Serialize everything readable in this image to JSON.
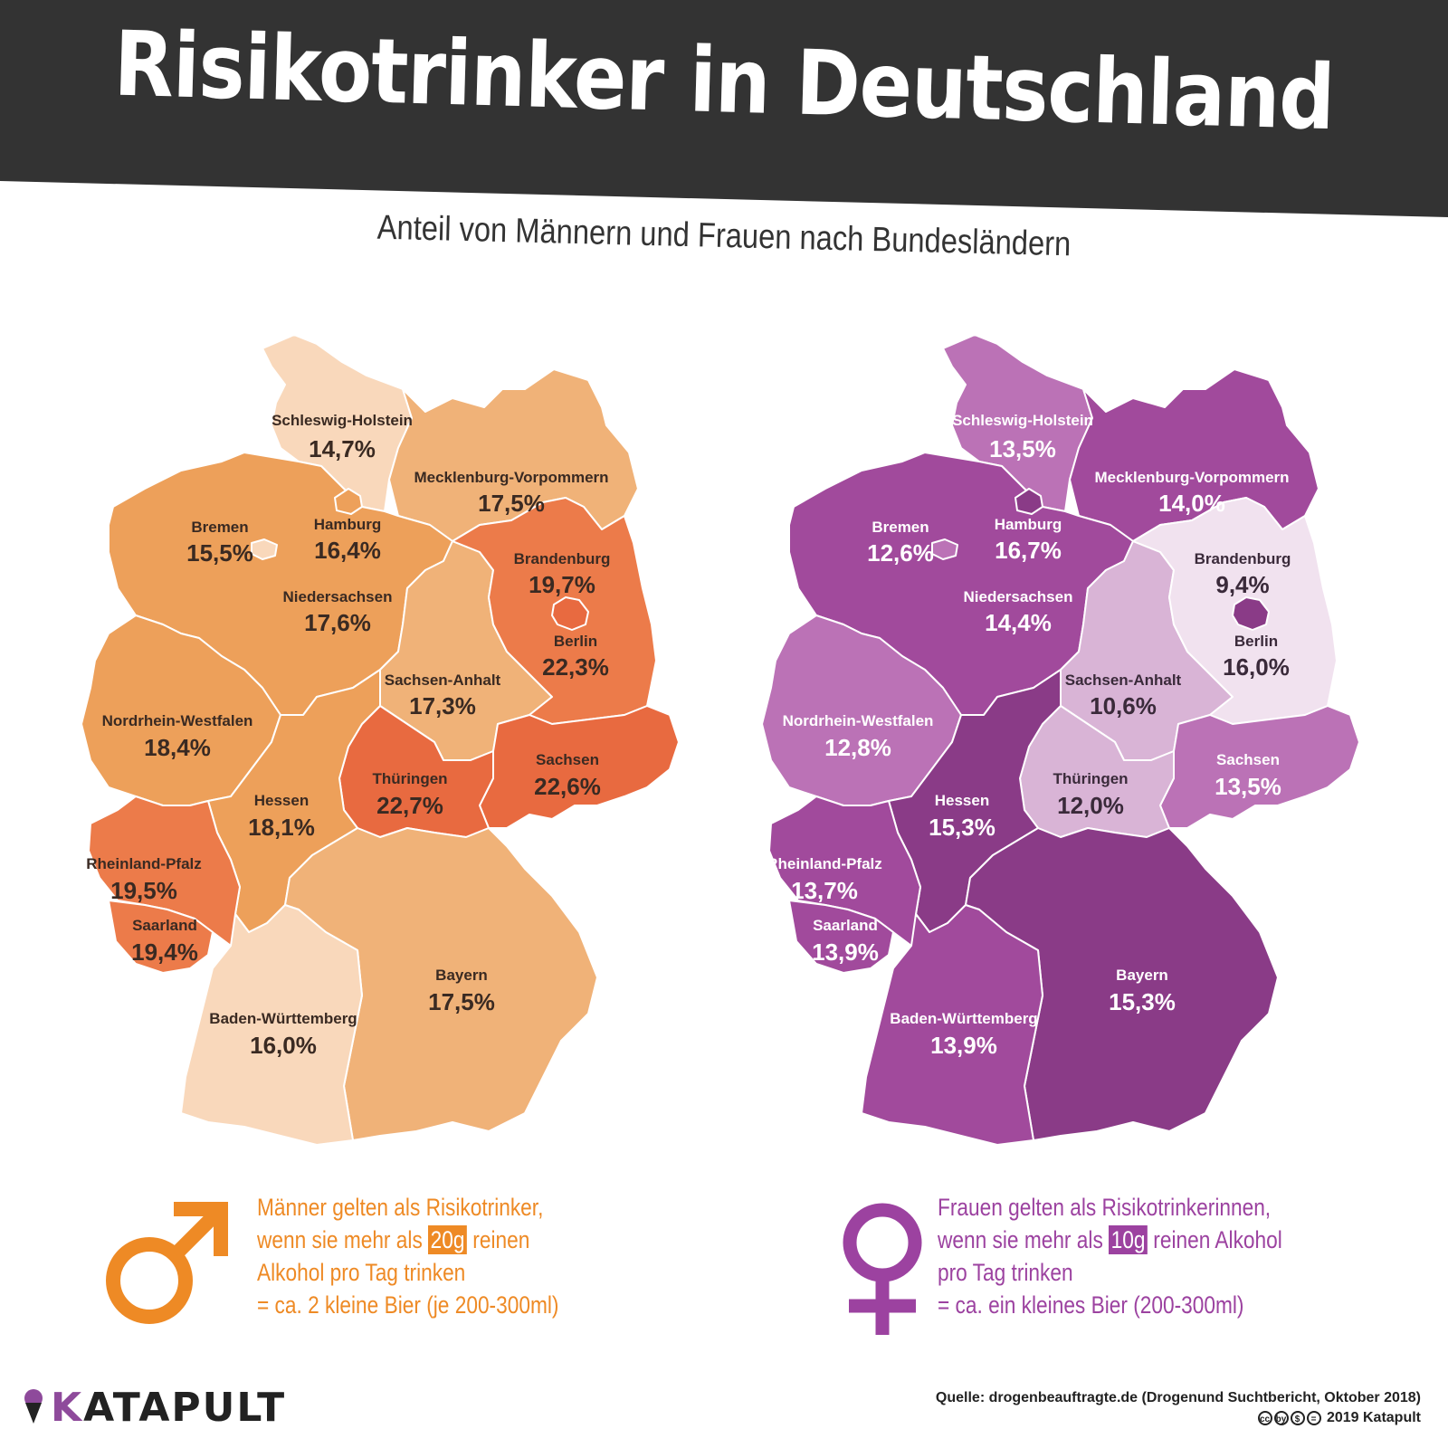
{
  "title": "Risikotrinker in Deutschland",
  "subtitle": "Anteil von Männern und Frauen nach Bundesländern",
  "colors": {
    "banner": "#333333",
    "men_accent": "#ee8a25",
    "women_accent": "#9c42a0",
    "men_scale": [
      "#f9d8bb",
      "#f0b278",
      "#eda05a",
      "#ec7b4a",
      "#e86a40"
    ],
    "women_scale": [
      "#f1e2ef",
      "#d9b4d6",
      "#bb72b6",
      "#a14a9c",
      "#8a3b87"
    ]
  },
  "chart_data": [
    {
      "type": "choropleth",
      "title": "Männer",
      "states": [
        {
          "name": "Schleswig-Holstein",
          "value": "14,7%"
        },
        {
          "name": "Mecklenburg-Vorpommern",
          "value": "17,5%"
        },
        {
          "name": "Bremen",
          "value": "15,5%"
        },
        {
          "name": "Hamburg",
          "value": "16,4%"
        },
        {
          "name": "Brandenburg",
          "value": "19,7%"
        },
        {
          "name": "Niedersachsen",
          "value": "17,6%"
        },
        {
          "name": "Berlin",
          "value": "22,3%"
        },
        {
          "name": "Sachsen-Anhalt",
          "value": "17,3%"
        },
        {
          "name": "Nordrhein-Westfalen",
          "value": "18,4%"
        },
        {
          "name": "Sachsen",
          "value": "22,6%"
        },
        {
          "name": "Thüringen",
          "value": "22,7%"
        },
        {
          "name": "Hessen",
          "value": "18,1%"
        },
        {
          "name": "Rheinland-Pfalz",
          "value": "19,5%"
        },
        {
          "name": "Saarland",
          "value": "19,4%"
        },
        {
          "name": "Bayern",
          "value": "17,5%"
        },
        {
          "name": "Baden-Württemberg",
          "value": "16,0%"
        }
      ]
    },
    {
      "type": "choropleth",
      "title": "Frauen",
      "states": [
        {
          "name": "Schleswig-Holstein",
          "value": "13,5%"
        },
        {
          "name": "Mecklenburg-Vorpommern",
          "value": "14,0%"
        },
        {
          "name": "Bremen",
          "value": "12,6%"
        },
        {
          "name": "Hamburg",
          "value": "16,7%"
        },
        {
          "name": "Brandenburg",
          "value": "9,4%"
        },
        {
          "name": "Niedersachsen",
          "value": "14,4%"
        },
        {
          "name": "Berlin",
          "value": "16,0%"
        },
        {
          "name": "Sachsen-Anhalt",
          "value": "10,6%"
        },
        {
          "name": "Nordrhein-Westfalen",
          "value": "12,8%"
        },
        {
          "name": "Sachsen",
          "value": "13,5%"
        },
        {
          "name": "Thüringen",
          "value": "12,0%"
        },
        {
          "name": "Hessen",
          "value": "15,3%"
        },
        {
          "name": "Rheinland-Pfalz",
          "value": "13,7%"
        },
        {
          "name": "Saarland",
          "value": "13,9%"
        },
        {
          "name": "Bayern",
          "value": "15,3%"
        },
        {
          "name": "Baden-Württemberg",
          "value": "13,9%"
        }
      ]
    }
  ],
  "men_def": {
    "line1": "Männer gelten als Risikotrinker,",
    "line2a": "wenn sie mehr als",
    "amount": "20g",
    "line2b": "reinen",
    "line3": "Alkohol pro Tag trinken",
    "line4": "= ca. 2 kleine Bier (je 200-300ml)"
  },
  "women_def": {
    "line1": "Frauen gelten als Risikotrinkerinnen,",
    "line2a": "wenn sie mehr als",
    "amount": "10g",
    "line2b": "reinen Alkohol",
    "line3": "pro Tag trinken",
    "line4": "= ca. ein kleines Bier (200-300ml)"
  },
  "brand": {
    "letter": "K",
    "rest": "ATAPULT"
  },
  "source": {
    "line1": "Quelle: drogenbeauftragte.de (Drogenund Suchtbericht, Oktober 2018)",
    "license_icons": [
      "cc",
      "by",
      "$",
      "="
    ],
    "line2": "2019 Katapult"
  }
}
